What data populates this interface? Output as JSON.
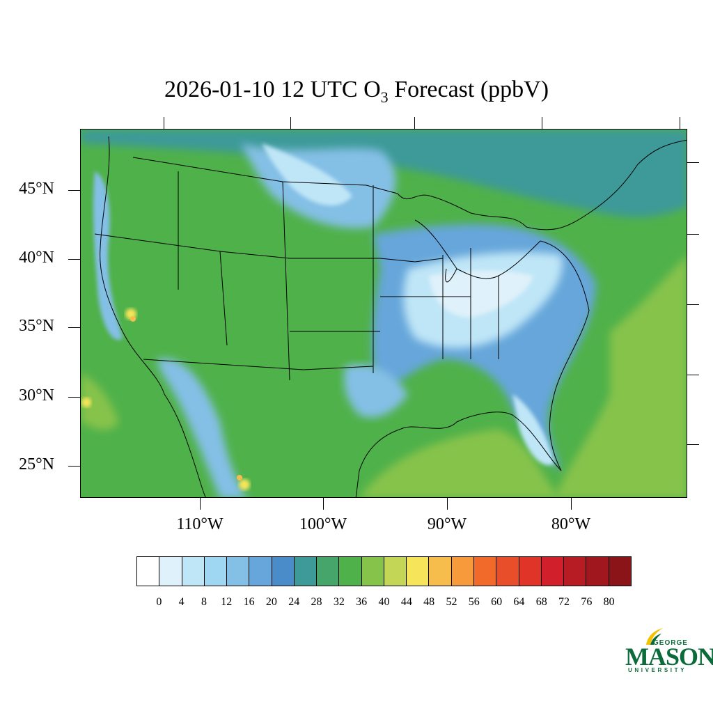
{
  "title": {
    "prefix": "2026-01-10 12 UTC O",
    "subscript": "3",
    "suffix": " Forecast (ppbV)"
  },
  "map": {
    "lat_labels": [
      "45°N",
      "40°N",
      "35°N",
      "30°N",
      "25°N"
    ],
    "lon_labels": [
      "110°W",
      "100°W",
      "90°W",
      "80°W"
    ]
  },
  "colorbar": {
    "colors": [
      "#ffffff",
      "#dff1fa",
      "#bfe6f7",
      "#9fd7f2",
      "#84bfe6",
      "#66a6da",
      "#4a8cca",
      "#3d9a98",
      "#46a56b",
      "#4fb14a",
      "#86c34b",
      "#c4d655",
      "#f6e55a",
      "#f7bd4c",
      "#f79a3c",
      "#f26a2a",
      "#e84e29",
      "#df3427",
      "#d21f2c",
      "#b71c24",
      "#a0181d",
      "#8a1418"
    ],
    "labels": [
      "0",
      "4",
      "8",
      "12",
      "16",
      "20",
      "24",
      "28",
      "32",
      "36",
      "40",
      "44",
      "48",
      "52",
      "56",
      "60",
      "64",
      "68",
      "72",
      "76",
      "80"
    ]
  },
  "logo": {
    "george": "GEORGE",
    "mason": "MASON",
    "university": "UNIVERSITY"
  }
}
